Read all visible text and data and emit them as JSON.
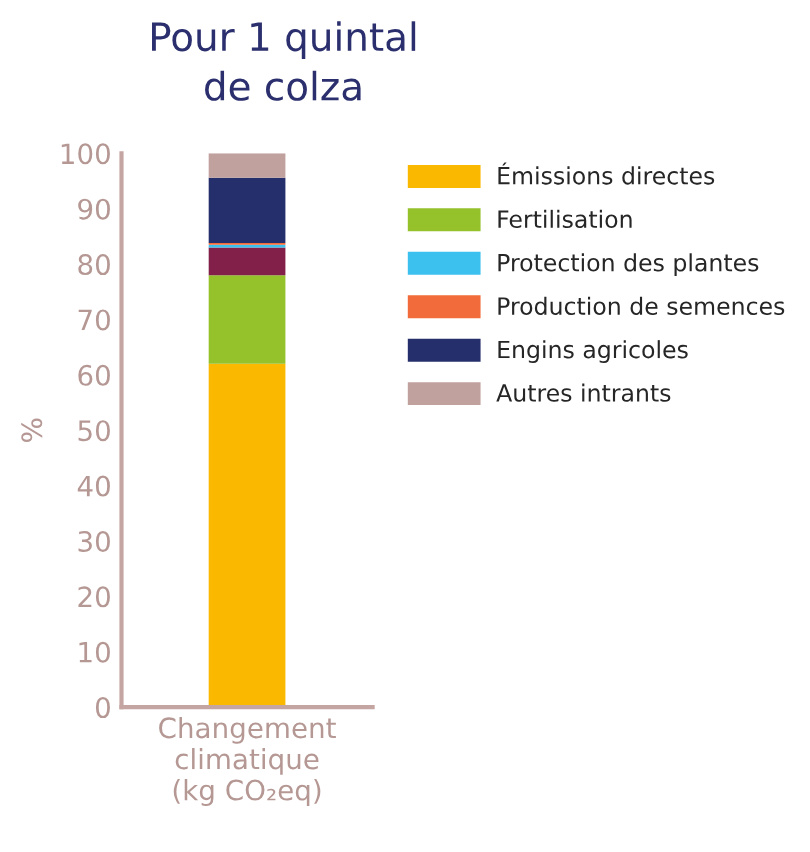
{
  "chart_data": {
    "type": "bar",
    "stacked": true,
    "title": "Pour 1 quintal\nde colza",
    "ylabel": "%",
    "categories": [
      "Changement\nclimatique\n(kg CO₂eq)"
    ],
    "series": [
      {
        "name": "Émissions directes",
        "color": "#fbb800",
        "values": [
          62
        ]
      },
      {
        "name": "Fertilisation",
        "color": "#95c12b",
        "values": [
          16
        ]
      },
      {
        "color": "#83204a",
        "values": [
          5
        ]
      },
      {
        "name": "Protection des plantes",
        "color": "#3cc0ee",
        "values": [
          0.5
        ]
      },
      {
        "name": "Production de semences",
        "color": "#f26b3a",
        "values": [
          0.3
        ]
      },
      {
        "name": "Engins agricoles",
        "color": "#252f6c",
        "values": [
          11.8
        ]
      },
      {
        "name": "Autres intrants",
        "color": "#c1a19e",
        "values": [
          4.4
        ]
      }
    ],
    "ylim": [
      0,
      100
    ],
    "yticks": [
      0,
      10,
      20,
      30,
      40,
      50,
      60,
      70,
      80,
      90,
      100
    ],
    "grid": false,
    "legend": "right"
  }
}
